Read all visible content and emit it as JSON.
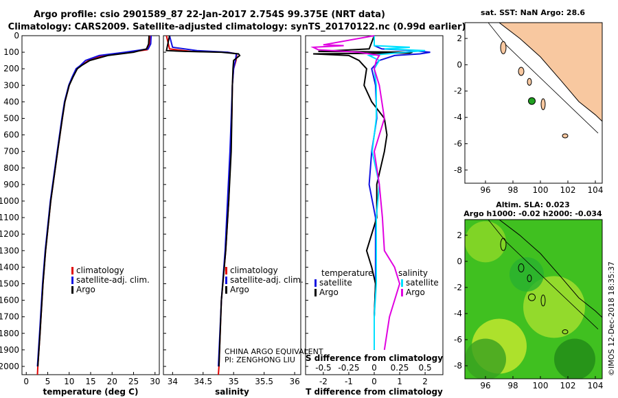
{
  "header": {
    "line1": "Argo profile: csio 2901589_87 22-Jan-2017 2.754S 99.375E (NRT data)",
    "line2": "Climatology: CARS2009. Satellite-adjusted climatology: synTS_20170122.nc (0.99d earlier)"
  },
  "colors": {
    "climatology": "#e00000",
    "satellite": "#1010e0",
    "argo": "#000000",
    "sal_sat": "#00e0ff",
    "sal_argo": "#e000e0",
    "land": "#f8c8a0",
    "sea_sla": "#40c020"
  },
  "chart_data": [
    {
      "type": "line",
      "name": "temperature-panel",
      "xlabel": "temperature (deg C)",
      "ylabel": "",
      "xlim": [
        -1,
        31
      ],
      "ylim": [
        2050,
        0
      ],
      "xticks": [
        0,
        5,
        10,
        15,
        20,
        25,
        30
      ],
      "yticks": [
        0,
        100,
        200,
        300,
        400,
        500,
        600,
        700,
        800,
        900,
        1000,
        1100,
        1200,
        1300,
        1400,
        1500,
        1600,
        1700,
        1800,
        1900,
        2000
      ],
      "legend": [
        "climatology",
        "satellite-adj. clim.",
        "Argo"
      ],
      "series": [
        {
          "name": "climatology",
          "color": "#e00000",
          "depth": [
            0,
            50,
            85,
            100,
            120,
            150,
            180,
            200,
            250,
            300,
            400,
            500,
            700,
            1000,
            1300,
            1500,
            1800,
            2000,
            2050
          ],
          "values": [
            28.8,
            28.7,
            28.2,
            24,
            18,
            14.5,
            12.8,
            11.8,
            10.8,
            10,
            9,
            8.4,
            7.3,
            5.7,
            4.5,
            3.9,
            3.2,
            2.7,
            2.6
          ]
        },
        {
          "name": "satellite-adj. clim.",
          "color": "#1010e0",
          "depth": [
            0,
            50,
            80,
            100,
            120,
            150,
            180,
            200,
            250,
            300,
            400,
            500,
            700,
            1000,
            1300,
            1500,
            1800,
            2000
          ],
          "values": [
            29.1,
            29,
            28.4,
            23,
            17,
            13.8,
            12.6,
            11.6,
            10.7,
            9.9,
            8.9,
            8.3,
            7.2,
            5.6,
            4.4,
            3.8,
            3.1,
            2.6
          ]
        },
        {
          "name": "Argo",
          "color": "#000000",
          "depth": [
            0,
            50,
            80,
            100,
            120,
            150,
            180,
            200,
            250,
            300,
            400,
            500,
            700,
            1000,
            1300,
            1500,
            1800,
            2000
          ],
          "values": [
            28.6,
            28.5,
            28,
            25,
            19,
            14.8,
            12.9,
            11.9,
            10.9,
            10,
            9,
            8.4,
            7.3,
            5.7,
            4.5,
            3.9,
            3.2,
            2.7
          ]
        }
      ]
    },
    {
      "type": "line",
      "name": "salinity-panel",
      "xlabel": "salinity",
      "xlim": [
        33.85,
        36.1
      ],
      "ylim": [
        2050,
        0
      ],
      "xticks": [
        34,
        34.5,
        35,
        35.5,
        36
      ],
      "legend": [
        "climatology",
        "satellite-adj. clim.",
        "Argo"
      ],
      "series": [
        {
          "name": "climatology",
          "color": "#e00000",
          "depth": [
            0,
            80,
            95,
            100,
            110,
            120,
            150,
            200,
            300,
            500,
            700,
            1000,
            1300,
            1600,
            2000,
            2050
          ],
          "values": [
            33.9,
            33.95,
            34.3,
            34.9,
            35.05,
            35.05,
            35.04,
            35.0,
            34.98,
            34.97,
            34.95,
            34.92,
            34.87,
            34.8,
            34.76,
            34.75
          ]
        },
        {
          "name": "satellite-adj. clim.",
          "color": "#1010e0",
          "depth": [
            0,
            70,
            90,
            100,
            110,
            120,
            150,
            200,
            300,
            500,
            700,
            1000,
            1300,
            1600,
            2000
          ],
          "values": [
            33.95,
            34.0,
            34.4,
            34.9,
            35.05,
            35.04,
            35.03,
            35.0,
            34.98,
            34.96,
            34.94,
            34.9,
            34.86,
            34.8,
            34.75
          ]
        },
        {
          "name": "Argo",
          "color": "#000000",
          "depth": [
            0,
            90,
            95,
            100,
            110,
            120,
            150,
            200,
            300,
            500,
            700,
            1000,
            1300,
            1600,
            2000
          ],
          "values": [
            33.95,
            33.9,
            34.2,
            34.8,
            35.08,
            35.1,
            35.0,
            34.99,
            34.98,
            34.97,
            34.96,
            34.92,
            34.87,
            34.8,
            34.76
          ]
        }
      ]
    },
    {
      "type": "line",
      "name": "difference-panel",
      "xlabel_bottom": "T difference from climatology",
      "xlabel_top": "S difference from climatology",
      "xlim": [
        -2.7,
        2.7
      ],
      "ylim": [
        2050,
        0
      ],
      "xticks_bottom": [
        -2,
        -1,
        0,
        1,
        2
      ],
      "xticks_top": [
        "-0.5",
        "-0.25",
        "0",
        "0.25",
        "0.5"
      ],
      "legend_left_title": "temperature",
      "legend_right_title": "salinity",
      "legend": [
        "satellite",
        "Argo",
        "satellite",
        "Argo"
      ],
      "series": [
        {
          "name": "T satellite",
          "color": "#1010e0",
          "depth": [
            0,
            60,
            80,
            90,
            100,
            110,
            120,
            150,
            200,
            300,
            500,
            700,
            900,
            1100,
            1300,
            1500,
            1700,
            1900
          ],
          "values": [
            0,
            0,
            0.3,
            1.5,
            2.2,
            1.8,
            0.8,
            0.2,
            -0.1,
            0.05,
            0.1,
            -0.1,
            -0.2,
            0.05,
            0.05,
            0.05,
            0,
            0
          ]
        },
        {
          "name": "T Argo",
          "color": "#000000",
          "depth": [
            0,
            80,
            95,
            100,
            105,
            110,
            120,
            150,
            200,
            300,
            400,
            500,
            600,
            700,
            900,
            1100,
            1300,
            1400,
            1500,
            1700,
            1900
          ],
          "values": [
            0,
            -0.2,
            -2.2,
            1.5,
            1.4,
            -2.4,
            -1,
            -0.6,
            -0.3,
            -0.4,
            -0.1,
            0.4,
            0.5,
            0.4,
            0.1,
            0.1,
            -0.3,
            -0.1,
            0.05,
            0,
            0
          ]
        },
        {
          "name": "S satellite",
          "color": "#00e0ff",
          "depth": [
            0,
            60,
            70,
            80,
            90,
            100,
            120,
            150,
            200,
            300,
            500,
            700,
            900,
            1100,
            1300,
            1500,
            1700,
            1900
          ],
          "values": [
            0,
            0,
            0.35,
            0.1,
            0.5,
            0.3,
            -0.05,
            0.05,
            0,
            0.02,
            0.02,
            -0.02,
            0.05,
            0.02,
            0.02,
            0.02,
            0,
            0
          ]
        },
        {
          "name": "S Argo",
          "color": "#e000e0",
          "depth": [
            0,
            55,
            60,
            70,
            85,
            100,
            120,
            150,
            200,
            300,
            500,
            700,
            900,
            1100,
            1300,
            1400,
            1500,
            1700,
            1900
          ],
          "values": [
            0,
            -0.5,
            -0.3,
            -0.6,
            -0.55,
            -0.15,
            0.05,
            0.02,
            0,
            0.05,
            0.1,
            0,
            0.05,
            0.08,
            0.1,
            0.2,
            0.25,
            0.15,
            0.1
          ]
        }
      ]
    }
  ],
  "map_top": {
    "title": "sat. SST: NaN Argo: 28.6",
    "xticks": [
      "96",
      "98",
      "100",
      "102",
      "104"
    ],
    "yticks": [
      "2",
      "0",
      "-2",
      "-4",
      "-6",
      "-8"
    ],
    "xlim": [
      94.5,
      104.5
    ],
    "ylim": [
      -9,
      3.2
    ]
  },
  "map_bottom": {
    "title1": "Altim. SLA: 0.023",
    "title2": "Argo h1000: -0.02 h2000: -0.034",
    "xticks": [
      "96",
      "98",
      "100",
      "102",
      "104"
    ],
    "yticks": [
      "2",
      "0",
      "-2",
      "-4",
      "-6",
      "-8"
    ],
    "xlim": [
      94.5,
      104.5
    ],
    "ylim": [
      -9,
      3.2
    ]
  },
  "argo_location": {
    "lon": 99.375,
    "lat": -2.754
  },
  "annotation": {
    "line1": "CHINA ARGO EQUIVALENT",
    "line2": "PI: ZENGHONG LIU"
  },
  "footer": {
    "stamp": "©IMOS 12-Dec-2018 18:35:37"
  }
}
